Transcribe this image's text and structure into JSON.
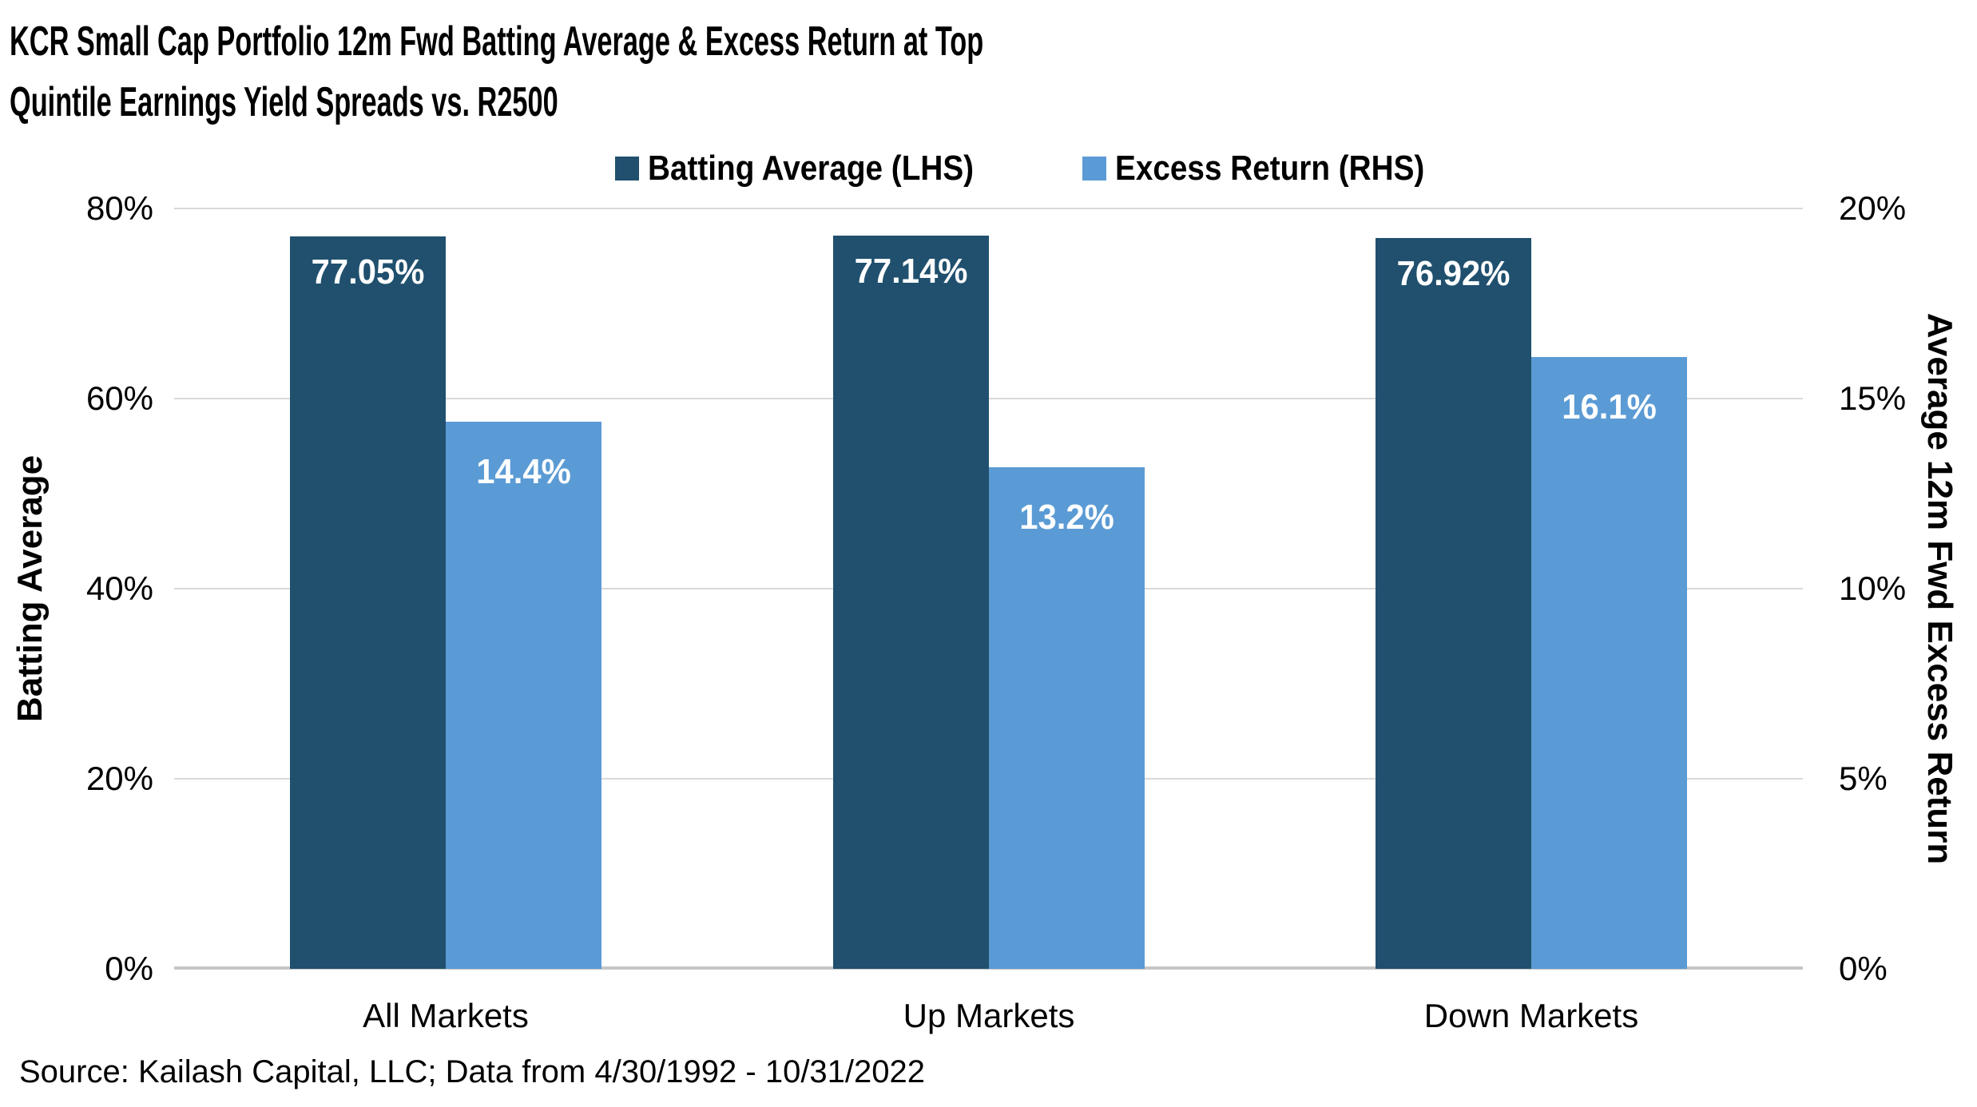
{
  "title": {
    "line1": "KCR Small Cap Portfolio 12m Fwd Batting Average & Excess Return at Top",
    "line2": "Quintile Earnings Yield Spreads vs. R2500"
  },
  "legend": {
    "items": [
      {
        "label": "Batting Average (LHS)",
        "color": "#20506E"
      },
      {
        "label": "Excess Return (RHS)",
        "color": "#5B9BD5"
      }
    ]
  },
  "chart_data": {
    "type": "bar",
    "categories": [
      "All Markets",
      "Up Markets",
      "Down Markets"
    ],
    "series": [
      {
        "name": "Batting Average (LHS)",
        "axis": "left",
        "color": "#20506E",
        "values": [
          77.05,
          77.14,
          76.92
        ],
        "labels": [
          "77.05%",
          "77.14%",
          "76.92%"
        ]
      },
      {
        "name": "Excess Return (RHS)",
        "axis": "right",
        "color": "#5B9BD5",
        "values": [
          14.4,
          13.2,
          16.1
        ],
        "labels": [
          "14.4%",
          "13.2%",
          "16.1%"
        ]
      }
    ],
    "left_axis": {
      "title": "Batting Average",
      "min": 0,
      "max": 80,
      "ticks_top_down": [
        "80%",
        "60%",
        "40%",
        "20%",
        "0%"
      ]
    },
    "right_axis": {
      "title": "Average 12m Fwd Excess Return",
      "min": 0,
      "max": 20,
      "ticks_top_down": [
        "20%",
        "15%",
        "10%",
        "5%",
        "0%"
      ]
    },
    "gridlines": true,
    "legend_position": "top-center",
    "colors": {
      "gridline": "#D9D9D9",
      "axis_baseline": "#C6C6C6",
      "bar_label_text": "#FFFFFF",
      "text": "#000000",
      "background": "#FFFFFF"
    }
  },
  "source": {
    "text": "Source: Kailash Capital, LLC; Data from 4/30/1992 - 10/31/2022"
  }
}
